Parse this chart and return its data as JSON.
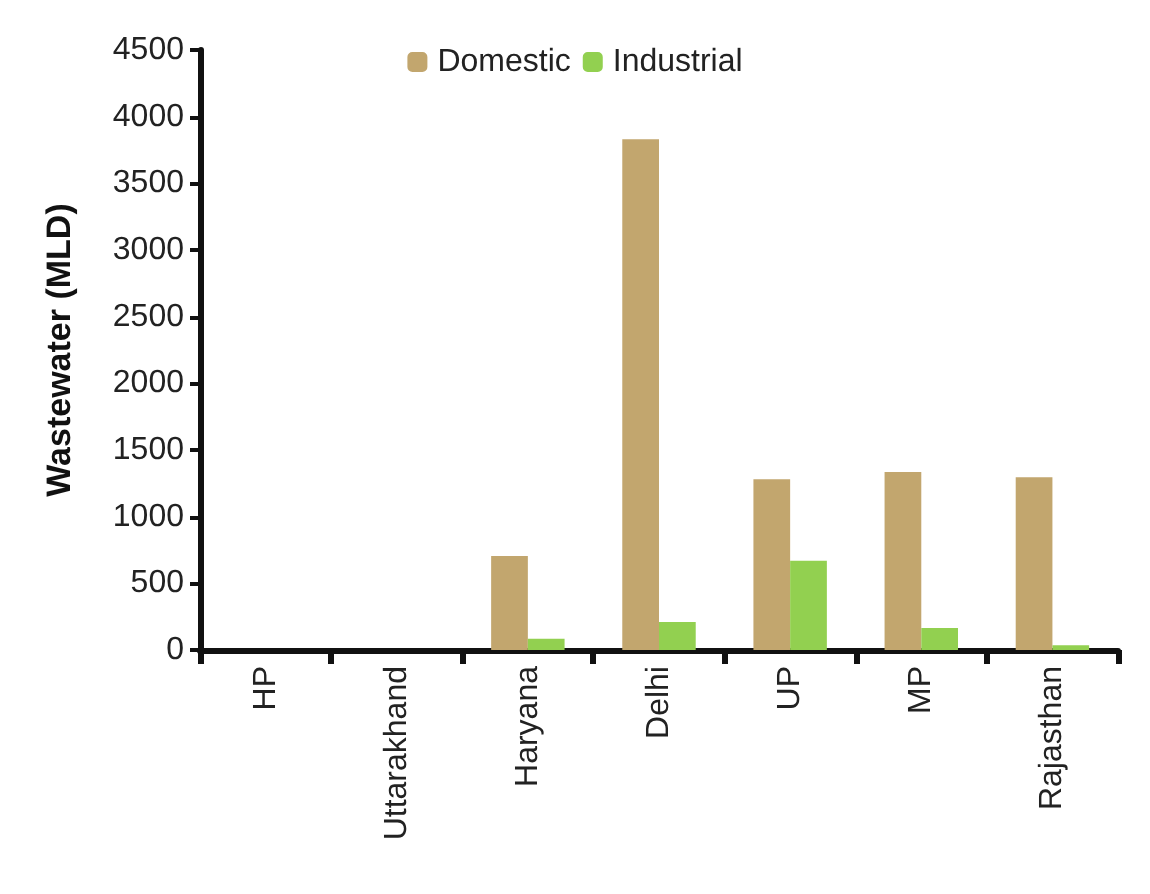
{
  "chart_data": {
    "type": "bar",
    "ylabel": "Wastewater (MLD)",
    "categories": [
      "HP",
      "Uttarakhand",
      "Haryana",
      "Delhi",
      "UP",
      "MP",
      "Rajasthan"
    ],
    "series": [
      {
        "name": "Domestic",
        "color": "#c2a66e",
        "values": [
          0,
          0,
          705,
          3830,
          1280,
          1335,
          1295
        ]
      },
      {
        "name": "Industrial",
        "color": "#92d050",
        "values": [
          0,
          0,
          85,
          210,
          670,
          165,
          35
        ]
      }
    ],
    "ylim": [
      0,
      4500
    ],
    "yticks": [
      0,
      500,
      1000,
      1500,
      2000,
      2500,
      3000,
      3500,
      4000,
      4500
    ],
    "grid": false,
    "legend": "top"
  }
}
